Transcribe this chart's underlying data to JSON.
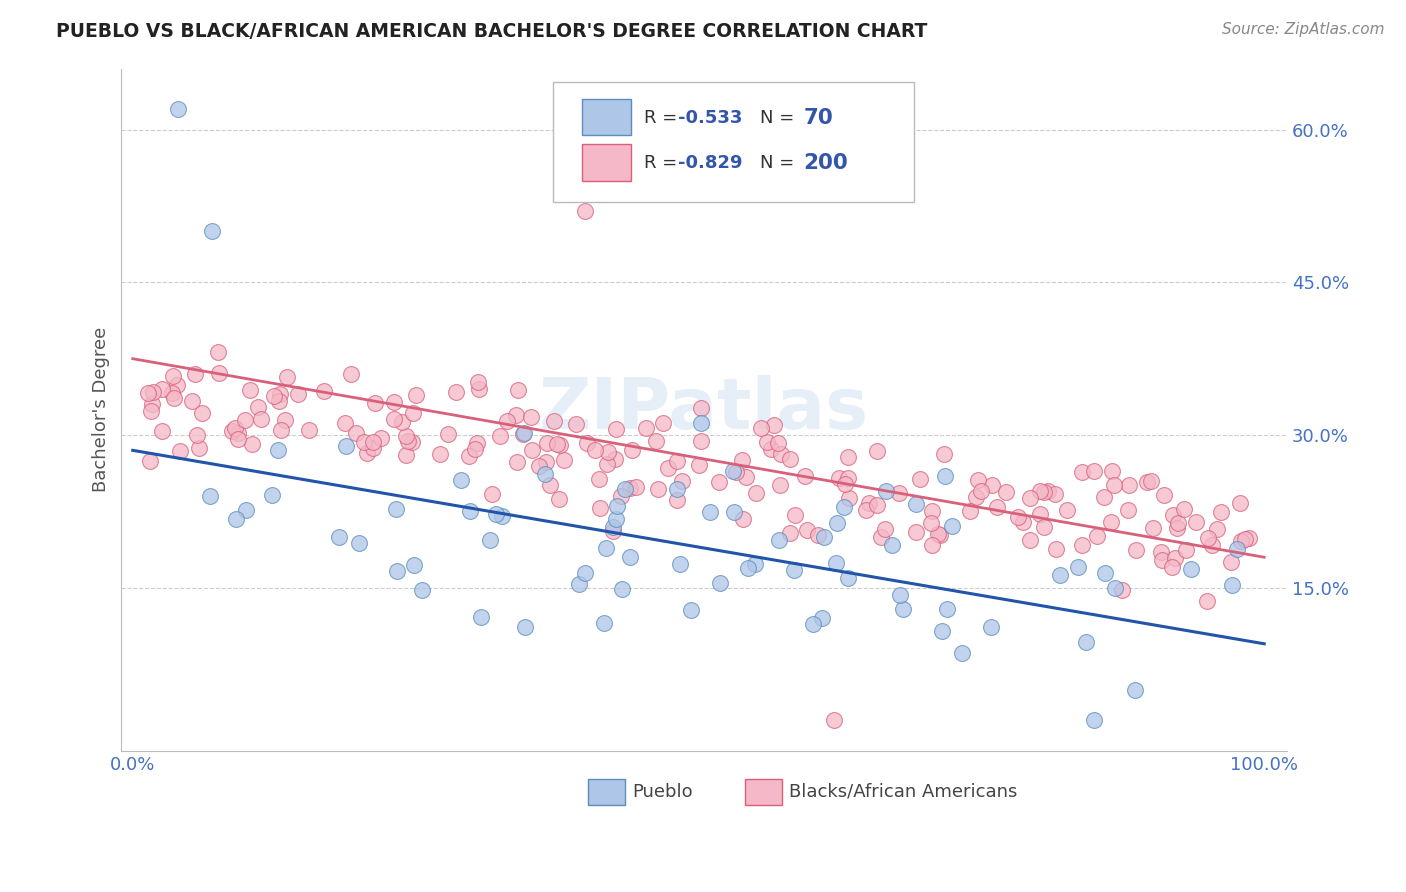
{
  "title": "PUEBLO VS BLACK/AFRICAN AMERICAN BACHELOR'S DEGREE CORRELATION CHART",
  "source": "Source: ZipAtlas.com",
  "ylabel": "Bachelor's Degree",
  "xlim": [
    0.0,
    1.0
  ],
  "ylim": [
    0.0,
    0.65
  ],
  "yticks": [
    0.15,
    0.3,
    0.45,
    0.6
  ],
  "ytick_labels": [
    "15.0%",
    "30.0%",
    "45.0%",
    "60.0%"
  ],
  "xtick_labels": [
    "0.0%",
    "100.0%"
  ],
  "legend_labels": [
    "Pueblo",
    "Blacks/African Americans"
  ],
  "blue_fill": "#aec6e8",
  "blue_edge": "#5b8dbd",
  "pink_fill": "#f4b8c8",
  "pink_edge": "#d9607a",
  "blue_line_color": "#2255aa",
  "pink_line_color": "#d9607a",
  "legend_text_color": "#3355aa",
  "R_blue": -0.533,
  "N_blue": 70,
  "R_pink": -0.829,
  "N_pink": 200,
  "blue_intercept": 0.285,
  "blue_slope": -0.19,
  "pink_intercept": 0.375,
  "pink_slope": -0.195,
  "watermark": "ZIPatlas",
  "background_color": "#ffffff",
  "grid_color": "#cccccc",
  "title_color": "#222222",
  "source_color": "#888888",
  "axis_label_color": "#555555",
  "tick_color": "#4472c4"
}
